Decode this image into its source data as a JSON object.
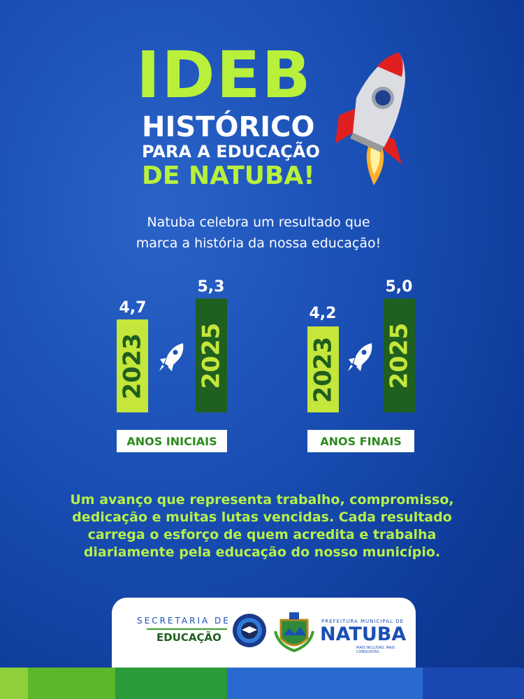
{
  "title": {
    "line1": "IDEB",
    "line2": "HISTÓRICO",
    "line3": "PARA A EDUCAÇÃO",
    "line4": "DE NATUBA!"
  },
  "subtitle": [
    "Natuba celebra um resultado que",
    "marca a história da nossa educação!"
  ],
  "groups": [
    {
      "label": "ANOS INICIAIS",
      "bars": [
        {
          "year": "2023",
          "value": "4,7"
        },
        {
          "year": "2025",
          "value": "5,3"
        }
      ]
    },
    {
      "label": "ANOS FINAIS",
      "bars": [
        {
          "year": "2023",
          "value": "4,2"
        },
        {
          "year": "2025",
          "value": "5,0"
        }
      ]
    }
  ],
  "paragraph": [
    "Um avanço que representa trabalho, compromisso,",
    "dedicação e muitas lutas vencidas. Cada resultado",
    "carrega o esforço de quem acredita e trabalha",
    "diariamente pela educação do nosso município."
  ],
  "footer": {
    "secretaria_line1": "SECRETARIA DE",
    "secretaria_line2": "EDUCAÇÃO",
    "prefeitura": "PREFEITURA MUNICIPAL DE",
    "city": "NATUBA",
    "slogan": "MAIS INCLUSÃO, MAIS CONQUISTAS"
  }
}
